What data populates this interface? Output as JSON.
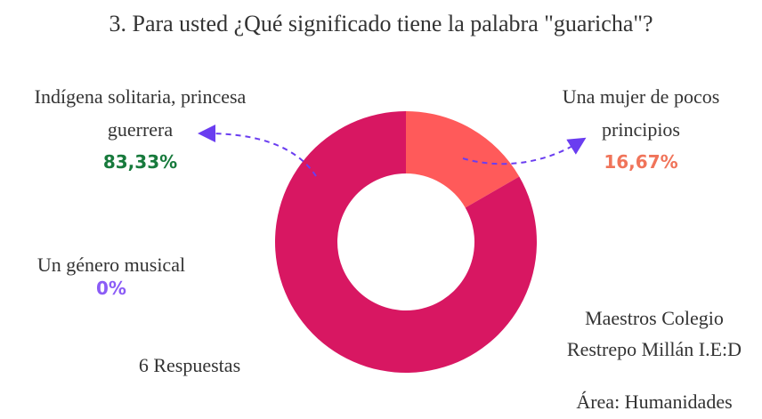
{
  "chart_data": {
    "type": "pie",
    "donut": true,
    "title": "3.  Para usted ¿Qué significado tiene la palabra \"guaricha\"?",
    "categories": [
      "Una mujer de pocos principios",
      "Indígena solitaria, princesa guerrera",
      "Un género musical"
    ],
    "values": [
      16.67,
      83.33,
      0
    ],
    "value_labels": [
      "16,67%",
      "83,33%",
      "0%"
    ],
    "colors": [
      "#ff5a5a",
      "#d81762",
      "#8b5cf6"
    ],
    "label_colors": [
      "#f0745a",
      "#177a3c",
      "#8b5cf6"
    ],
    "annotations": [
      "6 Respuestas",
      "Maestros Colegio Restrepo Millán I.E:D",
      "Área: Humanidades"
    ]
  }
}
